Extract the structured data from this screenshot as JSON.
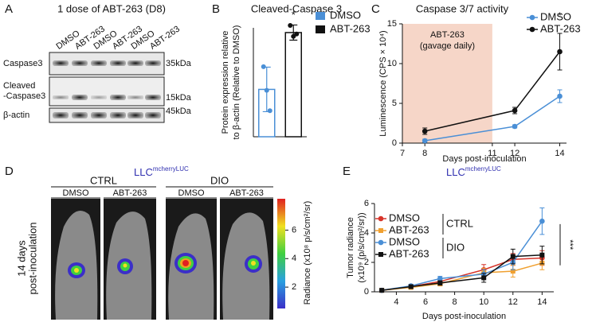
{
  "panels": {
    "A": {
      "letter": "A",
      "title": "1 dose of ABT-263 (D8)",
      "lanes": [
        "DMSO",
        "ABT-263",
        "DMSO",
        "ABT-263",
        "DMSO",
        "ABT-263"
      ],
      "lane_colors": [
        "#3a7fd0",
        "#111111",
        "#3a7fd0",
        "#111111",
        "#3a7fd0",
        "#111111"
      ],
      "rows": [
        [
          "Caspase3"
        ],
        [
          "Cleaved",
          "-Caspase3"
        ],
        [
          "β-actin"
        ]
      ],
      "markers": [
        "35kDa",
        "15kDa",
        "45kDa"
      ]
    },
    "D": {
      "letter": "D",
      "title": "LLC",
      "title_sup": "mcherryLUC",
      "title_color": "#3030b0",
      "groups": [
        "CTRL",
        "DIO"
      ],
      "group_colors": [
        "#111111",
        "#3a7fd0"
      ],
      "conditions": [
        "DMSO",
        "ABT-263",
        "DMSO",
        "ABT-263"
      ],
      "side_label": [
        "14 days",
        "post-inoculation"
      ],
      "colorbar": {
        "label": "Radiance (x10⁸ p/s/cm²/sr)",
        "lim": [
          0.5,
          8.2
        ],
        "ticks": [
          2,
          4,
          6
        ]
      }
    }
  },
  "chart_data": [
    {
      "letter": "B",
      "type": "bar",
      "title": "Cleaved-Caspase 3",
      "ylabel": [
        "Protein expression relative",
        "to β-actin (Relative to DMSO)"
      ],
      "ylim": [
        0,
        2.3
      ],
      "series": [
        {
          "name": "DMSO",
          "color": "#4a8fd6",
          "values": [
            1.0
          ],
          "errors": [
            0.47
          ],
          "points": [
            1.48,
            0.98,
            0.55
          ]
        },
        {
          "name": "ABT-263",
          "color": "#111111",
          "values": [
            2.2
          ],
          "errors": [
            0.16
          ],
          "points": [
            2.35,
            2.12,
            2.17
          ]
        }
      ],
      "annotation": "*",
      "legend": "top-right"
    },
    {
      "letter": "C",
      "type": "line",
      "title": "Caspase 3/7 activity",
      "ylabel": "Luminescence (CPS × 10⁴)",
      "xlabel": "Days post-inoculation",
      "x": [
        8,
        12,
        14
      ],
      "xlim": [
        7,
        14.3
      ],
      "xticks": [
        7,
        8,
        11,
        12,
        14
      ],
      "ylim": [
        0,
        15
      ],
      "yticks": [
        0,
        5,
        10,
        15
      ],
      "shade": {
        "x": [
          7,
          11
        ],
        "label": [
          "ABT-263",
          "(gavage daily)"
        ],
        "color": "#f6d6c8",
        "label_color": "#d9342b"
      },
      "series": [
        {
          "name": "DMSO",
          "color": "#4a8fd6",
          "marker": "circle",
          "values": [
            0.3,
            2.1,
            5.9
          ],
          "errors": [
            0.2,
            0.2,
            0.8
          ]
        },
        {
          "name": "ABT-263",
          "color": "#111111",
          "marker": "circle",
          "values": [
            1.5,
            4.1,
            11.5
          ],
          "errors": [
            0.4,
            0.4,
            2.3
          ]
        }
      ],
      "annotation": "*",
      "legend": "top-right"
    },
    {
      "letter": "E",
      "type": "line",
      "title": "LLC",
      "title_sup": "mcherryLUC",
      "title_color": "#3030b0",
      "ylabel": [
        "Tumor radiance",
        "(x10⁹ (p/s/cm²/sr))"
      ],
      "xlabel": "Days post-inoculation",
      "x": [
        3,
        5,
        7,
        10,
        12,
        14
      ],
      "xlim": [
        2.5,
        14.8
      ],
      "xticks": [
        4,
        6,
        8,
        10,
        12,
        14
      ],
      "ylim": [
        0,
        6
      ],
      "yticks": [
        0,
        2,
        4,
        6
      ],
      "legend_groups": [
        "CTRL",
        "DIO"
      ],
      "series": [
        {
          "name": "DMSO",
          "color": "#d7342a",
          "marker": "circle",
          "values": [
            0.1,
            0.35,
            0.7,
            1.5,
            2.2,
            2.3
          ],
          "errors": [
            0.05,
            0.1,
            0.15,
            0.35,
            0.4,
            0.5
          ]
        },
        {
          "name": "ABT-263",
          "color": "#f0a030",
          "marker": "square",
          "values": [
            0.1,
            0.3,
            0.55,
            1.3,
            1.4,
            1.95
          ],
          "errors": [
            0.05,
            0.1,
            0.15,
            0.3,
            0.4,
            0.45
          ]
        },
        {
          "name": "DMSO",
          "color": "#4a8fd6",
          "marker": "circle",
          "values": [
            0.1,
            0.4,
            0.9,
            1.2,
            2.0,
            4.8
          ],
          "errors": [
            0.05,
            0.1,
            0.15,
            0.3,
            0.5,
            0.9
          ]
        },
        {
          "name": "ABT-263",
          "color": "#111111",
          "marker": "square",
          "values": [
            0.1,
            0.35,
            0.6,
            0.95,
            2.4,
            2.5
          ],
          "errors": [
            0.05,
            0.1,
            0.15,
            0.3,
            0.5,
            0.6
          ]
        }
      ],
      "annotation": "***",
      "legend": "top-left"
    }
  ]
}
